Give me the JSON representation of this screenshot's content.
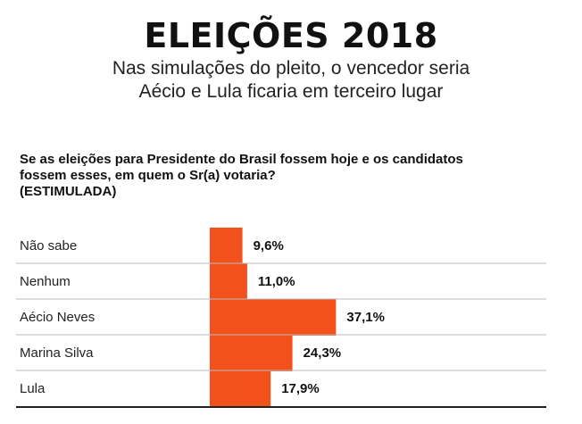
{
  "header": {
    "title": "ELEIÇÕES 2018",
    "subtitle_line1": "Nas simulações do pleito, o vencedor seria",
    "subtitle_line2": "Aécio e Lula ficaria em terceiro lugar"
  },
  "question": {
    "line1": "Se as eleições para Presidente do Brasil fossem hoje e os candidatos",
    "line2": "fossem esses, em quem o Sr(a) votaria?",
    "line3": "(ESTIMULADA)"
  },
  "colors": {
    "bar": "#f2511b",
    "divider": "#bbbbbb",
    "baseline": "#222222"
  },
  "chart_data": {
    "type": "bar",
    "orientation": "horizontal",
    "categories": [
      "Não sabe",
      "Nenhum",
      "Aécio Neves",
      "Marina Silva",
      "Lula"
    ],
    "values": [
      9.6,
      11.0,
      37.1,
      24.3,
      17.9
    ],
    "value_labels": [
      "9,6%",
      "11,0%",
      "37,1%",
      "24,3%",
      "17,9%"
    ],
    "title": "Se as eleições para Presidente do Brasil fossem hoje e os candidatos fossem esses, em quem o Sr(a) votaria? (ESTIMULADA)",
    "xlabel": "",
    "ylabel": "",
    "xlim": [
      0,
      40
    ]
  }
}
